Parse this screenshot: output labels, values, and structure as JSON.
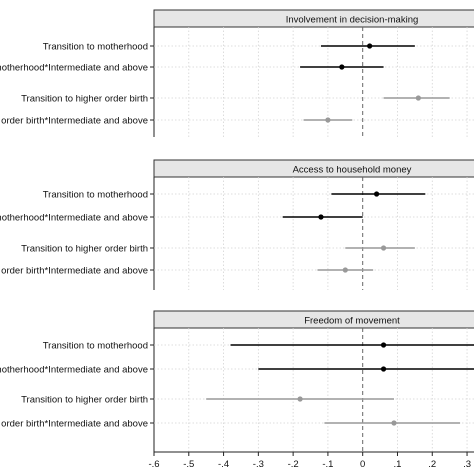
{
  "chart_data": {
    "type": "scatter",
    "subtype": "coefficient-plot",
    "x_ticks": [
      "-.6",
      "-.5",
      "-.4",
      "-.3",
      "-.2",
      "-.1",
      "0",
      ".1",
      ".2",
      ".3"
    ],
    "xlim": [
      -0.6,
      0.32
    ],
    "reference_line": 0,
    "grid": true,
    "row_labels": [
      "Transition to motherhood",
      "Transition to motherhood*Intermediate and above",
      "Transition to higher order birth",
      "Transition to higher order birth*Intermediate and above"
    ],
    "point_colors": [
      "#000000",
      "#000000",
      "#999999",
      "#999999"
    ],
    "panels": [
      {
        "title": "Involvement in decision-making",
        "rows": [
          {
            "est": 0.02,
            "lo": -0.12,
            "hi": 0.15
          },
          {
            "est": -0.06,
            "lo": -0.18,
            "hi": 0.06
          },
          {
            "est": 0.16,
            "lo": 0.06,
            "hi": 0.25
          },
          {
            "est": -0.1,
            "lo": -0.17,
            "hi": -0.03
          }
        ]
      },
      {
        "title": "Access to household money",
        "rows": [
          {
            "est": 0.04,
            "lo": -0.09,
            "hi": 0.18
          },
          {
            "est": -0.12,
            "lo": -0.23,
            "hi": 0.0
          },
          {
            "est": 0.06,
            "lo": -0.05,
            "hi": 0.15
          },
          {
            "est": -0.05,
            "lo": -0.13,
            "hi": 0.03
          }
        ]
      },
      {
        "title": "Freedom of movement",
        "rows": [
          {
            "est": 0.06,
            "lo": -0.38,
            "hi": 0.32
          },
          {
            "est": 0.06,
            "lo": -0.3,
            "hi": 0.32
          },
          {
            "est": -0.18,
            "lo": -0.45,
            "hi": 0.09
          },
          {
            "est": 0.09,
            "lo": -0.11,
            "hi": 0.28
          }
        ]
      }
    ]
  }
}
